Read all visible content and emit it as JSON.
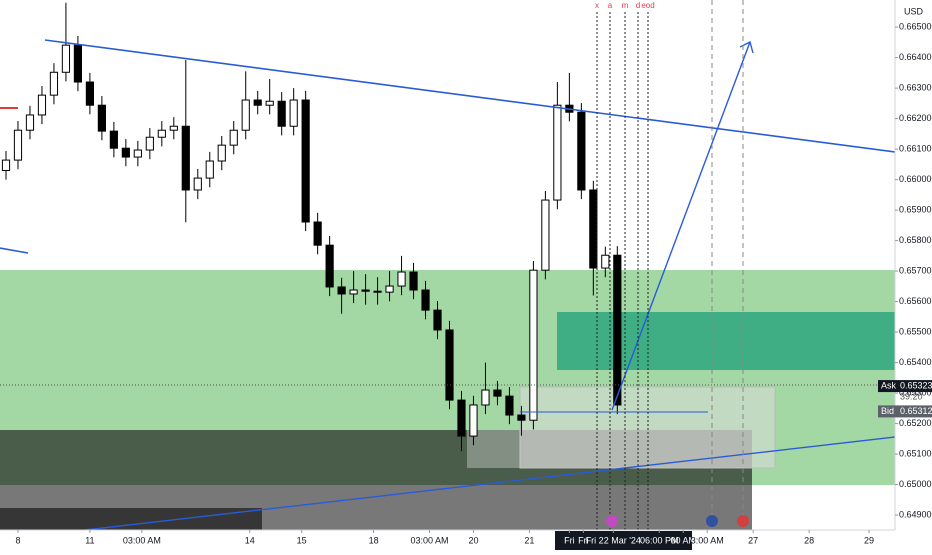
{
  "chart_data": {
    "type": "candlestick",
    "currency": "USD",
    "x": [
      0,
      3,
      6,
      9,
      12,
      15,
      18,
      21,
      24,
      27,
      30,
      33,
      36,
      39,
      42,
      45,
      48,
      51,
      54,
      57,
      60,
      63,
      66,
      69,
      72,
      75,
      78,
      81,
      84,
      87,
      90,
      93,
      96,
      99,
      102,
      105,
      108,
      111,
      114,
      117,
      120,
      123,
      126,
      129,
      132,
      135,
      138,
      141,
      144,
      147,
      150,
      153
    ],
    "open": [
      0.6603,
      0.66064,
      0.66162,
      0.66212,
      0.66277,
      0.66352,
      0.66441,
      0.6632,
      0.66244,
      0.66159,
      0.66103,
      0.66074,
      0.66097,
      0.66139,
      0.66162,
      0.66175,
      0.65966,
      0.66005,
      0.66061,
      0.66113,
      0.66162,
      0.66261,
      0.66244,
      0.66257,
      0.66175,
      0.66261,
      0.65861,
      0.65785,
      0.65648,
      0.65625,
      0.65638,
      0.65634,
      0.65631,
      0.65651,
      0.65697,
      0.65638,
      0.65572,
      0.65507,
      0.65277,
      0.65159,
      0.65261,
      0.6531,
      0.6529,
      0.65228,
      0.65211,
      0.65703,
      0.65933,
      0.66244,
      0.66221,
      0.65966,
      0.6571,
      0.65752
    ],
    "high": [
      0.66094,
      0.66192,
      0.66242,
      0.66307,
      0.66382,
      0.6658,
      0.66471,
      0.6635,
      0.66274,
      0.66189,
      0.66133,
      0.66127,
      0.66169,
      0.66192,
      0.66205,
      0.66392,
      0.66035,
      0.66091,
      0.66143,
      0.66192,
      0.66355,
      0.66291,
      0.6633,
      0.66287,
      0.663,
      0.66291,
      0.65891,
      0.65815,
      0.65678,
      0.657,
      0.6569,
      0.6568,
      0.657,
      0.6575,
      0.65727,
      0.65668,
      0.65602,
      0.65537,
      0.65307,
      0.65291,
      0.654,
      0.6534,
      0.6532,
      0.65258,
      0.65733,
      0.65963,
      0.6632,
      0.6635,
      0.66251,
      0.65996,
      0.6578,
      0.65782
    ],
    "low": [
      0.66,
      0.66034,
      0.66132,
      0.66182,
      0.66247,
      0.66322,
      0.6629,
      0.66214,
      0.66129,
      0.66073,
      0.66044,
      0.66044,
      0.66067,
      0.66109,
      0.66132,
      0.6586,
      0.65936,
      0.65975,
      0.66031,
      0.66083,
      0.66132,
      0.66214,
      0.66214,
      0.66145,
      0.66145,
      0.65831,
      0.65755,
      0.65618,
      0.6556,
      0.65595,
      0.6559,
      0.6559,
      0.65601,
      0.65621,
      0.65608,
      0.65542,
      0.65477,
      0.65247,
      0.6511,
      0.65129,
      0.65231,
      0.6526,
      0.65198,
      0.6516,
      0.65181,
      0.65673,
      0.65903,
      0.66191,
      0.65936,
      0.6562,
      0.6568,
      0.65231
    ],
    "close": [
      0.66064,
      0.66162,
      0.66212,
      0.66277,
      0.66352,
      0.66441,
      0.6632,
      0.66244,
      0.66159,
      0.66103,
      0.66074,
      0.66097,
      0.66139,
      0.66162,
      0.66175,
      0.65966,
      0.66005,
      0.66061,
      0.66113,
      0.66162,
      0.66261,
      0.66244,
      0.66257,
      0.66175,
      0.66261,
      0.65861,
      0.65785,
      0.65648,
      0.65625,
      0.65638,
      0.65634,
      0.65631,
      0.65651,
      0.65697,
      0.65638,
      0.65572,
      0.65507,
      0.65277,
      0.65159,
      0.65261,
      0.6531,
      0.6529,
      0.65228,
      0.65211,
      0.65703,
      0.65933,
      0.66244,
      0.66221,
      0.65966,
      0.6571,
      0.65752,
      0.65261
    ],
    "up_color": "#ffffff",
    "down_color": "#000000",
    "xlim": [
      -1.5,
      222.5
    ],
    "ylim": [
      0.64851,
      0.66589
    ],
    "xticks": [
      {
        "value": 3,
        "label": "8"
      },
      {
        "value": 21,
        "label": "11"
      },
      {
        "value": 34,
        "label": "03:00 AM"
      },
      {
        "value": 61,
        "label": "14"
      },
      {
        "value": 74,
        "label": "15"
      },
      {
        "value": 92,
        "label": "18"
      },
      {
        "value": 106,
        "label": "03:00 AM"
      },
      {
        "value": 117,
        "label": "20"
      },
      {
        "value": 131,
        "label": "21"
      },
      {
        "value": 141,
        "label": "Fri"
      },
      {
        "value": 144.5,
        "label": "Fri"
      },
      {
        "value": 152,
        "label": "Fri 22 Mar '24"
      },
      {
        "value": 163.5,
        "label": "06:00 PM"
      },
      {
        "value": 169.5,
        "label": "00 AM"
      },
      {
        "value": 175.5,
        "label": "3:00 AM"
      },
      {
        "value": 187,
        "label": "27"
      },
      {
        "value": 201,
        "label": "28"
      },
      {
        "value": 216,
        "label": "29"
      }
    ],
    "yticks": [
      {
        "value": 0.665,
        "label": "0.66500"
      },
      {
        "value": 0.664,
        "label": "0.66400"
      },
      {
        "value": 0.663,
        "label": "0.66300"
      },
      {
        "value": 0.662,
        "label": "0.66200"
      },
      {
        "value": 0.661,
        "label": "0.66100"
      },
      {
        "value": 0.66,
        "label": "0.66000"
      },
      {
        "value": 0.659,
        "label": "0.65900"
      },
      {
        "value": 0.658,
        "label": "0.65800"
      },
      {
        "value": 0.657,
        "label": "0.65700"
      },
      {
        "value": 0.656,
        "label": "0.65600"
      },
      {
        "value": 0.655,
        "label": "0.65500"
      },
      {
        "value": 0.654,
        "label": "0.65400"
      },
      {
        "value": 0.653,
        "label": "0.65300"
      },
      {
        "value": 0.652,
        "label": "0.65200"
      },
      {
        "value": 0.651,
        "label": "0.65100"
      },
      {
        "value": 0.65,
        "label": "0.65000"
      },
      {
        "value": 0.649,
        "label": "0.64900"
      }
    ],
    "annotations": [
      "x",
      "a",
      "m",
      "d",
      "eod"
    ],
    "ask": {
      "label": "Ask",
      "price": 0.65323,
      "countdown": "39:20"
    },
    "bid": {
      "label": "Bid",
      "price": 0.65312
    }
  }
}
